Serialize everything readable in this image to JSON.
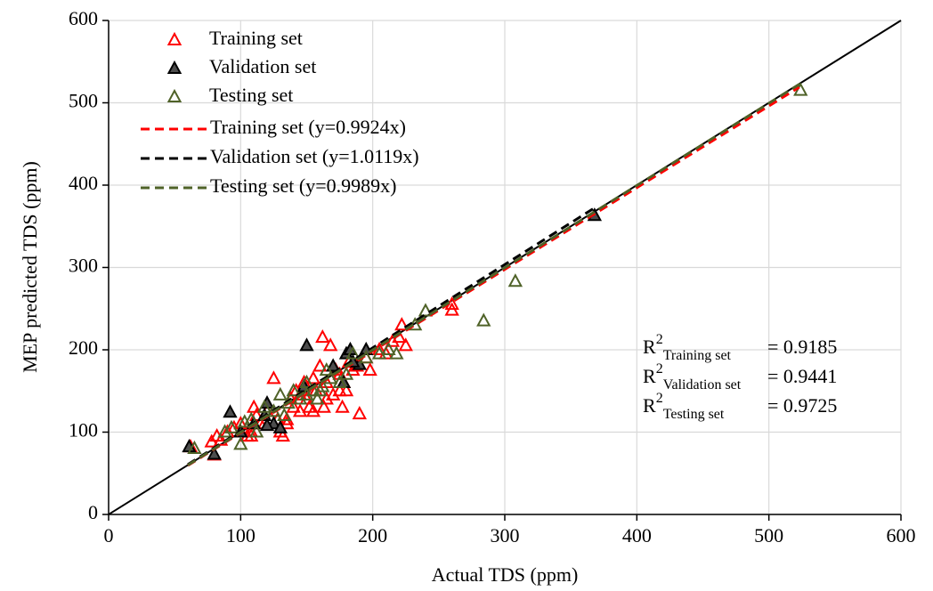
{
  "chart_data": {
    "type": "scatter",
    "x_label": "Actual TDS (ppm)",
    "y_label": "MEP predicted TDS (ppm)",
    "xlim": [
      0,
      600
    ],
    "ylim": [
      0,
      600
    ],
    "xticks": [
      0,
      100,
      200,
      300,
      400,
      500,
      600
    ],
    "yticks": [
      0,
      100,
      200,
      300,
      400,
      500,
      600
    ],
    "grid": true,
    "legend": "upper left",
    "series": [
      {
        "name": "Training set",
        "color": "#ff0000",
        "fill": "none",
        "x": [
          62,
          78,
          80,
          82,
          85,
          90,
          95,
          100,
          105,
          108,
          110,
          112,
          115,
          120,
          125,
          128,
          130,
          132,
          135,
          138,
          140,
          142,
          145,
          148,
          150,
          152,
          155,
          157,
          160,
          162,
          163,
          165,
          168,
          170,
          172,
          175,
          177,
          178,
          180,
          182,
          185,
          188,
          190,
          195,
          198,
          205,
          210,
          215,
          220,
          222,
          225,
          260,
          260,
          108,
          118,
          135,
          145,
          155,
          165,
          175
        ],
        "values": [
          82,
          88,
          72,
          95,
          90,
          100,
          105,
          110,
          95,
          100,
          130,
          120,
          110,
          125,
          165,
          115,
          100,
          95,
          110,
          140,
          130,
          150,
          125,
          160,
          140,
          130,
          125,
          150,
          180,
          215,
          130,
          160,
          205,
          145,
          175,
          170,
          130,
          160,
          150,
          185,
          175,
          180,
          122,
          190,
          175,
          200,
          195,
          210,
          215,
          230,
          205,
          248,
          255,
          95,
          110,
          115,
          145,
          165,
          140,
          150
        ]
      },
      {
        "name": "Validation set",
        "color": "#000000",
        "fill": "#4d4d4d",
        "x": [
          61,
          80,
          92,
          100,
          110,
          118,
          120,
          125,
          130,
          148,
          150,
          178,
          180,
          183,
          190,
          195,
          368,
          120,
          170,
          185
        ],
        "values": [
          82,
          73,
          124,
          100,
          110,
          120,
          135,
          110,
          105,
          155,
          205,
          160,
          195,
          200,
          182,
          200,
          363,
          108,
          180,
          185
        ]
      },
      {
        "name": "Testing set",
        "color": "#4f6228",
        "fill": "none",
        "x": [
          65,
          88,
          93,
          100,
          103,
          108,
          112,
          118,
          125,
          130,
          133,
          136,
          140,
          145,
          150,
          155,
          158,
          162,
          165,
          168,
          175,
          180,
          185,
          195,
          205,
          212,
          218,
          232,
          240,
          284,
          308,
          524,
          150,
          160
        ],
        "values": [
          80,
          100,
          105,
          85,
          112,
          115,
          100,
          130,
          125,
          145,
          120,
          135,
          150,
          140,
          145,
          150,
          140,
          155,
          175,
          165,
          160,
          170,
          195,
          190,
          195,
          200,
          195,
          230,
          247,
          235,
          283,
          515,
          160,
          150
        ]
      }
    ],
    "trendlines": [
      {
        "name": "Training set (y=0.9924x)",
        "color": "#ff0000",
        "x": [
          60,
          523
        ],
        "y": [
          59.5,
          519
        ]
      },
      {
        "name": "Validation set (y=1.0119x)",
        "color": "#000000",
        "x": [
          60,
          368
        ],
        "y": [
          60.7,
          372.4
        ]
      },
      {
        "name": "Testing set (y=0.9989x)",
        "color": "#4f6228",
        "x": [
          60,
          524
        ],
        "y": [
          59.9,
          523.4
        ]
      }
    ],
    "reference_line": {
      "color": "#000000",
      "x": [
        0,
        600
      ],
      "y": [
        0,
        600
      ]
    },
    "annotations": [
      {
        "base": "R",
        "sup": "2",
        "sub": "Training set",
        "text": "= 0.9185"
      },
      {
        "base": "R",
        "sup": "2",
        "sub": "Validation set",
        "text": "= 0.9441"
      },
      {
        "base": "R",
        "sup": "2",
        "sub": "Testing set",
        "text": "= 0.9725"
      }
    ]
  }
}
